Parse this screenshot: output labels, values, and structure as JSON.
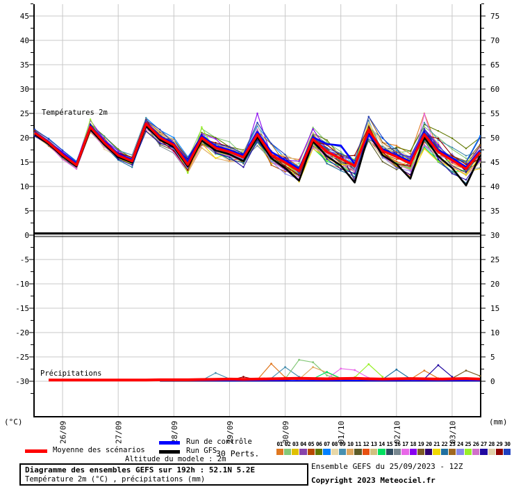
{
  "labels": {
    "temperature_panel": "Températures 2m",
    "precipitation_panel": "Précipitations",
    "left_unit": "(°C)",
    "right_unit": "(mm)"
  },
  "legend": {
    "mean_label": "Moyenne des scénarios",
    "control_label": "Run de contrôle",
    "gfs_label": "Run GFS",
    "perts_label": "30 Perts.",
    "mean_color": "#ff0000",
    "control_color": "#0000ff",
    "gfs_color": "#000000"
  },
  "altitude_note": "Altitude du modele : 2m",
  "info_box": {
    "line1": "Diagramme des ensembles GEFS sur 192h : 52.1N 5.2E",
    "line2": "Température 2m (°C) , précipitations (mm)"
  },
  "source_box": {
    "line1": "Ensemble GEFS du 25/09/2023 - 12Z",
    "line2": "Copyright 2023 Meteociel.fr"
  },
  "chart_data": {
    "type": "line",
    "title": "Diagramme des ensembles GEFS sur 192h : 52.1N 5.2E",
    "x_hours_step": 6,
    "x_hours_max": 192,
    "x_date_labels": [
      "26/09",
      "27/09",
      "28/09",
      "29/09",
      "30/09",
      "01/10",
      "02/10",
      "03/10"
    ],
    "left_axis": {
      "unit": "°C",
      "ticks": [
        45,
        40,
        35,
        30,
        25,
        20,
        15,
        10,
        5,
        0,
        -5,
        -10,
        -15,
        -20,
        -25,
        -30
      ]
    },
    "right_axis": {
      "unit": "mm",
      "ticks": [
        75,
        70,
        65,
        60,
        55,
        50,
        45,
        40,
        35,
        30,
        25,
        20,
        15,
        10,
        5,
        0
      ]
    },
    "grid_color": "#c8c8c8",
    "temperature": {
      "mean": [
        21.0,
        19.0,
        16.5,
        14.4,
        22.2,
        19.0,
        16.4,
        15.2,
        22.9,
        20.0,
        18.5,
        14.5,
        20.0,
        17.9,
        17.1,
        16.0,
        20.7,
        16.5,
        14.9,
        13.2,
        19.7,
        17.1,
        15.7,
        14.2,
        21.6,
        17.3,
        16.1,
        14.7,
        20.7,
        17.1,
        15.4,
        13.6,
        17.0
      ],
      "control": [
        21.2,
        19.2,
        16.8,
        14.7,
        22.5,
        19.3,
        16.7,
        15.5,
        23.1,
        20.3,
        18.8,
        14.9,
        20.4,
        18.3,
        17.5,
        16.4,
        21.2,
        17.1,
        15.4,
        13.6,
        20.1,
        18.7,
        18.4,
        14.6,
        20.6,
        17.6,
        16.4,
        15.1,
        21.1,
        17.5,
        15.8,
        14.0,
        17.4
      ],
      "gfs": [
        20.7,
        18.7,
        16.2,
        14.1,
        21.7,
        18.6,
        16.0,
        14.9,
        22.4,
        19.6,
        18.1,
        14.1,
        19.4,
        17.4,
        16.6,
        15.2,
        20.1,
        15.8,
        13.8,
        11.2,
        19.2,
        16.2,
        14.3,
        10.8,
        20.8,
        16.4,
        14.6,
        11.6,
        20.0,
        16.2,
        13.8,
        10.2,
        16.3
      ],
      "spread": [
        0.7,
        0.8,
        0.9,
        0.9,
        1.3,
        1.3,
        1.2,
        1.2,
        1.5,
        1.6,
        1.6,
        1.7,
        2.0,
        2.0,
        2.0,
        2.0,
        2.3,
        2.2,
        2.2,
        2.2,
        2.3,
        2.3,
        2.4,
        2.4,
        2.6,
        2.6,
        2.6,
        2.6,
        2.8,
        2.8,
        2.8,
        2.8,
        3.2
      ],
      "outliers": {
        "0": {
          "28": 4.3
        },
        "1": {
          "8": 1.2
        },
        "3": {
          "23": -2.5
        },
        "5": {
          "29": 4.3,
          "30": 4.5,
          "31": 4.2,
          "32": 3.0
        },
        "16": {
          "28": 4.2
        },
        "17": {
          "16": 4.3
        },
        "19": {
          "19": -2.2,
          "23": -3.0,
          "27": -2.3
        },
        "24": {
          "4": 1.6,
          "12": 2.2
        }
      }
    },
    "members": [
      {
        "id": "01",
        "color": "#E07820"
      },
      {
        "id": "02",
        "color": "#84C878"
      },
      {
        "id": "03",
        "color": "#E0C000"
      },
      {
        "id": "04",
        "color": "#8844AA"
      },
      {
        "id": "05",
        "color": "#B84800"
      },
      {
        "id": "06",
        "color": "#5F7800"
      },
      {
        "id": "07",
        "color": "#0080FF"
      },
      {
        "id": "08",
        "color": "#E8D8A8"
      },
      {
        "id": "09",
        "color": "#4890B0"
      },
      {
        "id": "10",
        "color": "#E0A860"
      },
      {
        "id": "11",
        "color": "#5C5C28"
      },
      {
        "id": "12",
        "color": "#E85010"
      },
      {
        "id": "13",
        "color": "#D0C080"
      },
      {
        "id": "14",
        "color": "#00E060"
      },
      {
        "id": "15",
        "color": "#304C60"
      },
      {
        "id": "16",
        "color": "#788890"
      },
      {
        "id": "17",
        "color": "#E868E8"
      },
      {
        "id": "18",
        "color": "#8800F0"
      },
      {
        "id": "19",
        "color": "#7C5C24"
      },
      {
        "id": "20",
        "color": "#300070"
      },
      {
        "id": "21",
        "color": "#F0D800"
      },
      {
        "id": "22",
        "color": "#2070A0"
      },
      {
        "id": "23",
        "color": "#A06820"
      },
      {
        "id": "24",
        "color": "#8888E8"
      },
      {
        "id": "25",
        "color": "#98F028"
      },
      {
        "id": "26",
        "color": "#D070C8"
      },
      {
        "id": "27",
        "color": "#2008A0"
      },
      {
        "id": "28",
        "color": "#E0D0A8"
      },
      {
        "id": "29",
        "color": "#900000"
      },
      {
        "id": "30",
        "color": "#2040C0"
      }
    ],
    "precipitation": {
      "mean_start_hour": 6,
      "mean": [
        0.25,
        0.25,
        0.25,
        0.25,
        0.25,
        0.25,
        0.25,
        0.25,
        0.3,
        0.3,
        0.3,
        0.35,
        0.4,
        0.45,
        0.4,
        0.45,
        0.5,
        0.55,
        0.6,
        0.55,
        0.5,
        0.55,
        0.6,
        0.5,
        0.45,
        0.5,
        0.55,
        0.5,
        0.45,
        0.5,
        0.55,
        0.45
      ],
      "members_start_hour": 54,
      "bumps": [
        {
          "color": "#4890B0",
          "points": [
            [
              72,
              0.2
            ],
            [
              78,
              1.7
            ],
            [
              84,
              0.5
            ],
            [
              90,
              0.2
            ]
          ]
        },
        {
          "color": "#900000",
          "points": [
            [
              84,
              0.2
            ],
            [
              90,
              0.9
            ],
            [
              96,
              0.3
            ]
          ]
        },
        {
          "color": "#E07820",
          "points": [
            [
              96,
              0.3
            ],
            [
              102,
              3.6
            ],
            [
              108,
              0.8
            ],
            [
              114,
              0.2
            ]
          ]
        },
        {
          "color": "#4890B0",
          "points": [
            [
              102,
              0.6
            ],
            [
              108,
              2.9
            ],
            [
              114,
              0.9
            ],
            [
              120,
              0.3
            ]
          ]
        },
        {
          "color": "#84C878",
          "points": [
            [
              108,
              0.5
            ],
            [
              114,
              4.4
            ],
            [
              120,
              3.9
            ],
            [
              126,
              1.2
            ],
            [
              132,
              0.4
            ]
          ]
        },
        {
          "color": "#E0A860",
          "points": [
            [
              114,
              0.4
            ],
            [
              120,
              2.9
            ],
            [
              126,
              1.8
            ],
            [
              132,
              0.5
            ]
          ]
        },
        {
          "color": "#E868E8",
          "points": [
            [
              126,
              0.5
            ],
            [
              132,
              2.6
            ],
            [
              138,
              2.3
            ],
            [
              144,
              0.7
            ]
          ]
        },
        {
          "color": "#00E060",
          "points": [
            [
              120,
              0.5
            ],
            [
              126,
              1.9
            ],
            [
              132,
              0.6
            ]
          ]
        },
        {
          "color": "#98F028",
          "points": [
            [
              138,
              0.8
            ],
            [
              144,
              3.5
            ],
            [
              150,
              0.9
            ]
          ]
        },
        {
          "color": "#2070A0",
          "points": [
            [
              150,
              0.4
            ],
            [
              156,
              2.4
            ],
            [
              162,
              0.5
            ]
          ]
        },
        {
          "color": "#E07820",
          "points": [
            [
              162,
              0.4
            ],
            [
              168,
              2.2
            ],
            [
              174,
              0.6
            ]
          ]
        },
        {
          "color": "#2008A0",
          "points": [
            [
              168,
              0.5
            ],
            [
              174,
              3.3
            ],
            [
              180,
              0.9
            ]
          ]
        },
        {
          "color": "#7C5C24",
          "points": [
            [
              180,
              0.6
            ],
            [
              186,
              2.2
            ],
            [
              192,
              1.1
            ]
          ]
        }
      ]
    }
  }
}
